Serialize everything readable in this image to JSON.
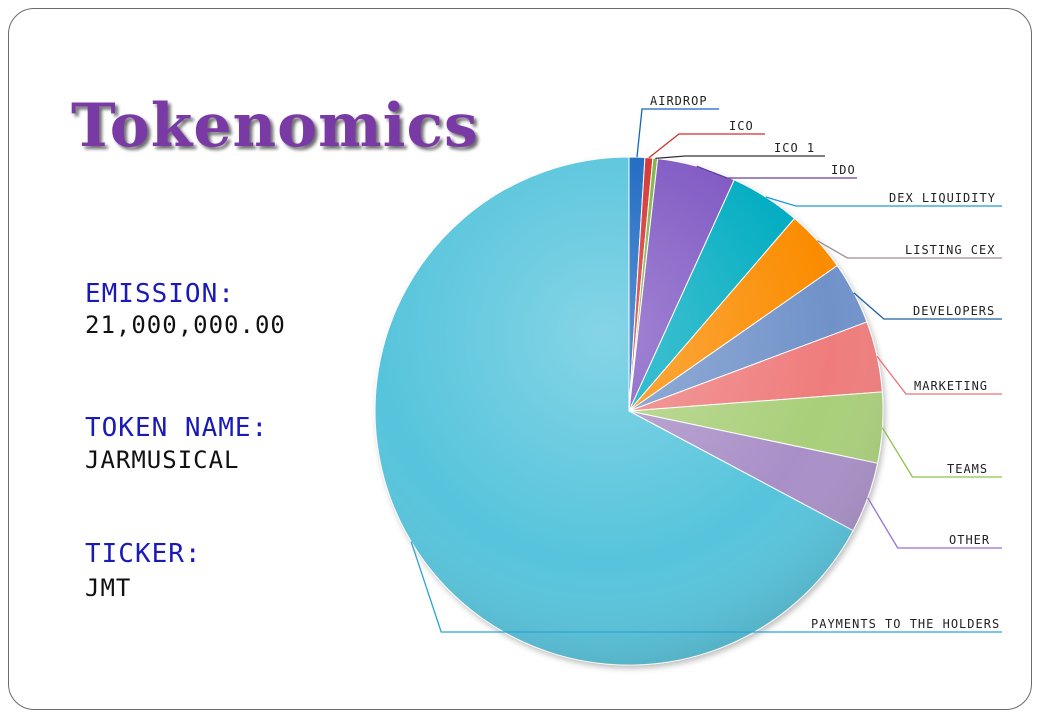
{
  "slide": {
    "title": "Tokenomics",
    "emission_label": "EMISSION:",
    "emission_value": "21,000,000.00",
    "token_name_label": "TOKEN NAME:",
    "token_name_value": "JARMUSICAL",
    "ticker_label": "TICKER:",
    "ticker_value": "JMT"
  },
  "chart_data": {
    "type": "pie",
    "title": "",
    "slices": [
      {
        "label": "AIRDROP",
        "value": 1.0,
        "color": "#1565c0"
      },
      {
        "label": "ICO",
        "value": 0.5,
        "color": "#d32f2f"
      },
      {
        "label": "ICO 1",
        "value": 0.3,
        "color": "#7cb342"
      },
      {
        "label": "IDO",
        "value": 5.0,
        "color": "#7e57c2"
      },
      {
        "label": "DEX LIQUIDITY",
        "value": 4.5,
        "color": "#00acc1"
      },
      {
        "label": "LISTING CEX",
        "value": 4.0,
        "color": "#fb8c00"
      },
      {
        "label": "DEVELOPERS",
        "value": 4.0,
        "color": "#6f92c9"
      },
      {
        "label": "MARKETING",
        "value": 4.5,
        "color": "#ef7b7b"
      },
      {
        "label": "TEAMS",
        "value": 4.5,
        "color": "#a9cf7a"
      },
      {
        "label": "OTHER",
        "value": 4.5,
        "color": "#a98fc7"
      },
      {
        "label": "PAYMENTS TO THE HOLDERS",
        "value": 67.2,
        "color": "#56c4dc"
      }
    ]
  },
  "legend_colors": [
    "#1565c0",
    "#d32f2f",
    "#333333",
    "#6a3fa0",
    "#1f9ad6",
    "#9e8f8f",
    "#1f5f9e",
    "#e57373",
    "#8bc34a",
    "#9c6fcf",
    "#29a3d6"
  ]
}
